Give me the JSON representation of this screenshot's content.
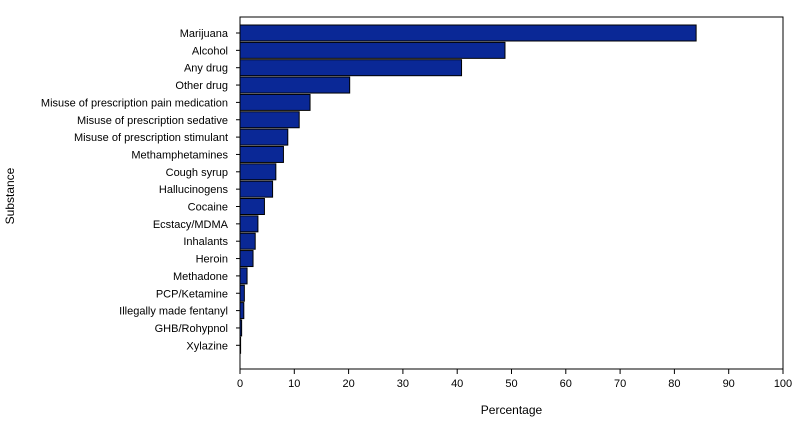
{
  "chart_data": {
    "type": "bar",
    "orientation": "horizontal",
    "title": "",
    "xlabel": "Percentage",
    "ylabel": "Substance",
    "xlim": [
      0,
      100
    ],
    "xticks": [
      0,
      10,
      20,
      30,
      40,
      50,
      60,
      70,
      80,
      90,
      100
    ],
    "grid": false,
    "legend": "none",
    "bar_color": "#0a2896",
    "bar_edge_color": "#000000",
    "categories": [
      "Marijuana",
      "Alcohol",
      "Any drug",
      "Other drug",
      "Misuse of prescription pain medication",
      "Misuse of prescription sedative",
      "Misuse of prescription stimulant",
      "Methamphetamines",
      "Cough syrup",
      "Hallucinogens",
      "Cocaine",
      "Ecstacy/MDMA",
      "Inhalants",
      "Heroin",
      "Methadone",
      "PCP/Ketamine",
      "Illegally made fentanyl",
      "GHB/Rohypnol",
      "Xylazine"
    ],
    "values": [
      84.0,
      48.8,
      40.8,
      20.2,
      12.9,
      10.9,
      8.8,
      8.0,
      6.6,
      6.0,
      4.5,
      3.3,
      2.8,
      2.4,
      1.3,
      0.8,
      0.7,
      0.3,
      0.1
    ]
  }
}
